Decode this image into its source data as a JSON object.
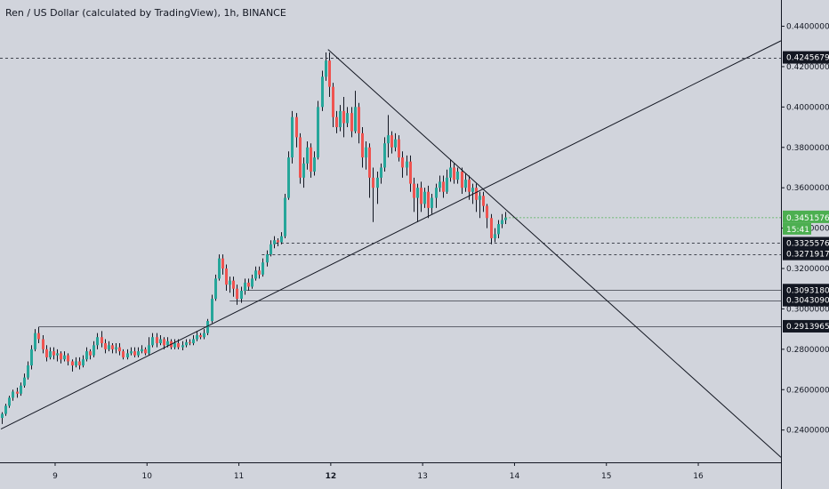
{
  "header": {
    "title": "Ren / US Dollar (calculated by TradingView), 1h, BINANCE"
  },
  "colors": {
    "background": "#d1d4dc",
    "up": "#26a69a",
    "down": "#ef5350",
    "up_label": "#4caf50",
    "line": "#131722",
    "label_bg": "#131722"
  },
  "chart_data": {
    "type": "candlestick",
    "symbol": "Ren / US Dollar",
    "interval": "1h",
    "exchange": "BINANCE",
    "x_ticks": [
      "9",
      "10",
      "11",
      "12",
      "13",
      "14",
      "15",
      "16"
    ],
    "y_ticks": [
      "0.24000000",
      "0.26000000",
      "0.28000000",
      "0.30000000",
      "0.32000000",
      "0.34000000",
      "0.36000000",
      "0.38000000",
      "0.40000000",
      "0.42000000",
      "0.44000000"
    ],
    "ylim": [
      0.224,
      0.453
    ],
    "xlim": [
      8.4,
      16.9
    ],
    "last_price": "0.34515761",
    "countdown": "15:41",
    "price_levels": [
      "0.42456799",
      "0.33255763",
      "0.32719173",
      "0.30931801",
      "0.30430900",
      "0.29139656"
    ],
    "trendlines": [
      {
        "x": [
          8.41,
          16.9
        ],
        "y": [
          0.2405,
          0.4328
        ]
      },
      {
        "x": [
          11.97,
          16.9
        ],
        "y": [
          0.4285,
          0.2265
        ]
      }
    ],
    "candles": [
      [
        8.42,
        0.246,
        0.248,
        0.243,
        0.2488
      ],
      [
        8.46,
        0.248,
        0.252,
        0.247,
        0.253
      ],
      [
        8.5,
        0.252,
        0.256,
        0.251,
        0.257
      ],
      [
        8.54,
        0.256,
        0.259,
        0.2545,
        0.26
      ],
      [
        8.58,
        0.259,
        0.258,
        0.256,
        0.261
      ],
      [
        8.62,
        0.258,
        0.262,
        0.257,
        0.2635
      ],
      [
        8.66,
        0.262,
        0.266,
        0.261,
        0.268
      ],
      [
        8.7,
        0.266,
        0.272,
        0.265,
        0.274
      ],
      [
        8.74,
        0.272,
        0.28,
        0.27,
        0.282
      ],
      [
        8.78,
        0.28,
        0.288,
        0.279,
        0.29
      ],
      [
        8.82,
        0.288,
        0.285,
        0.283,
        0.291
      ],
      [
        8.86,
        0.285,
        0.28,
        0.278,
        0.287
      ],
      [
        8.9,
        0.28,
        0.276,
        0.274,
        0.282
      ],
      [
        8.94,
        0.276,
        0.279,
        0.275,
        0.281
      ],
      [
        8.98,
        0.279,
        0.277,
        0.275,
        0.281
      ],
      [
        9.02,
        0.277,
        0.278,
        0.274,
        0.28
      ],
      [
        9.06,
        0.278,
        0.275,
        0.273,
        0.279
      ],
      [
        9.1,
        0.275,
        0.277,
        0.274,
        0.279
      ],
      [
        9.14,
        0.277,
        0.274,
        0.272,
        0.278
      ],
      [
        9.18,
        0.274,
        0.272,
        0.269,
        0.275
      ],
      [
        9.22,
        0.272,
        0.274,
        0.271,
        0.276
      ],
      [
        9.26,
        0.274,
        0.272,
        0.27,
        0.276
      ],
      [
        9.3,
        0.272,
        0.275,
        0.271,
        0.277
      ],
      [
        9.34,
        0.275,
        0.279,
        0.274,
        0.281
      ],
      [
        9.38,
        0.279,
        0.277,
        0.275,
        0.28
      ],
      [
        9.42,
        0.277,
        0.282,
        0.276,
        0.284
      ],
      [
        9.46,
        0.282,
        0.286,
        0.28,
        0.288
      ],
      [
        9.5,
        0.286,
        0.283,
        0.281,
        0.289
      ],
      [
        9.54,
        0.283,
        0.28,
        0.278,
        0.285
      ],
      [
        9.58,
        0.28,
        0.282,
        0.279,
        0.284
      ],
      [
        9.62,
        0.282,
        0.28,
        0.278,
        0.283
      ],
      [
        9.66,
        0.28,
        0.281,
        0.278,
        0.283
      ],
      [
        9.7,
        0.281,
        0.279,
        0.277,
        0.283
      ],
      [
        9.74,
        0.279,
        0.276,
        0.275,
        0.28
      ],
      [
        9.78,
        0.276,
        0.278,
        0.275,
        0.28
      ],
      [
        9.82,
        0.278,
        0.279,
        0.277,
        0.281
      ],
      [
        9.86,
        0.279,
        0.277,
        0.276,
        0.281
      ],
      [
        9.9,
        0.277,
        0.279,
        0.276,
        0.281
      ],
      [
        9.94,
        0.279,
        0.28,
        0.278,
        0.282
      ],
      [
        9.98,
        0.28,
        0.278,
        0.277,
        0.281
      ],
      [
        10.02,
        0.278,
        0.282,
        0.277,
        0.286
      ],
      [
        10.06,
        0.282,
        0.286,
        0.281,
        0.288
      ],
      [
        10.1,
        0.286,
        0.283,
        0.281,
        0.288
      ],
      [
        10.14,
        0.283,
        0.285,
        0.282,
        0.287
      ],
      [
        10.18,
        0.285,
        0.282,
        0.28,
        0.286
      ],
      [
        10.22,
        0.282,
        0.284,
        0.281,
        0.286
      ],
      [
        10.26,
        0.284,
        0.281,
        0.28,
        0.285
      ],
      [
        10.3,
        0.281,
        0.283,
        0.28,
        0.285
      ],
      [
        10.34,
        0.283,
        0.281,
        0.28,
        0.285
      ],
      [
        10.38,
        0.281,
        0.282,
        0.2795,
        0.284
      ],
      [
        10.42,
        0.282,
        0.2835,
        0.281,
        0.285
      ],
      [
        10.46,
        0.2835,
        0.283,
        0.282,
        0.285
      ],
      [
        10.5,
        0.283,
        0.285,
        0.282,
        0.287
      ],
      [
        10.54,
        0.285,
        0.287,
        0.284,
        0.289
      ],
      [
        10.58,
        0.287,
        0.286,
        0.285,
        0.288
      ],
      [
        10.62,
        0.286,
        0.288,
        0.285,
        0.29
      ],
      [
        10.66,
        0.288,
        0.294,
        0.287,
        0.295
      ],
      [
        10.7,
        0.294,
        0.305,
        0.293,
        0.307
      ],
      [
        10.74,
        0.305,
        0.315,
        0.304,
        0.317
      ],
      [
        10.78,
        0.315,
        0.325,
        0.314,
        0.327
      ],
      [
        10.82,
        0.325,
        0.32,
        0.317,
        0.327
      ],
      [
        10.86,
        0.32,
        0.312,
        0.309,
        0.322
      ],
      [
        10.9,
        0.312,
        0.314,
        0.308,
        0.316
      ],
      [
        10.94,
        0.314,
        0.31,
        0.306,
        0.316
      ],
      [
        10.98,
        0.31,
        0.305,
        0.302,
        0.312
      ],
      [
        11.02,
        0.305,
        0.309,
        0.303,
        0.311
      ],
      [
        11.06,
        0.309,
        0.313,
        0.307,
        0.315
      ],
      [
        11.1,
        0.313,
        0.311,
        0.309,
        0.315
      ],
      [
        11.14,
        0.311,
        0.315,
        0.31,
        0.317
      ],
      [
        11.18,
        0.315,
        0.319,
        0.314,
        0.321
      ],
      [
        11.22,
        0.319,
        0.317,
        0.315,
        0.321
      ],
      [
        11.26,
        0.317,
        0.323,
        0.316,
        0.325
      ],
      [
        11.3,
        0.323,
        0.327,
        0.321,
        0.329
      ],
      [
        11.34,
        0.327,
        0.332,
        0.326,
        0.334
      ],
      [
        11.38,
        0.332,
        0.334,
        0.33,
        0.336
      ],
      [
        11.42,
        0.334,
        0.333,
        0.331,
        0.335
      ],
      [
        11.46,
        0.333,
        0.336,
        0.332,
        0.338
      ],
      [
        11.5,
        0.336,
        0.355,
        0.335,
        0.357
      ],
      [
        11.54,
        0.355,
        0.375,
        0.354,
        0.378
      ],
      [
        11.58,
        0.375,
        0.395,
        0.372,
        0.398
      ],
      [
        11.62,
        0.395,
        0.385,
        0.38,
        0.397
      ],
      [
        11.66,
        0.385,
        0.365,
        0.362,
        0.387
      ],
      [
        11.7,
        0.365,
        0.372,
        0.36,
        0.375
      ],
      [
        11.74,
        0.372,
        0.38,
        0.369,
        0.383
      ],
      [
        11.78,
        0.38,
        0.368,
        0.365,
        0.382
      ],
      [
        11.82,
        0.368,
        0.375,
        0.366,
        0.378
      ],
      [
        11.86,
        0.375,
        0.4,
        0.374,
        0.403
      ],
      [
        11.9,
        0.4,
        0.415,
        0.398,
        0.418
      ],
      [
        11.94,
        0.415,
        0.423,
        0.413,
        0.427
      ],
      [
        11.98,
        0.423,
        0.41,
        0.405,
        0.427
      ],
      [
        12.02,
        0.41,
        0.395,
        0.39,
        0.412
      ],
      [
        12.06,
        0.395,
        0.39,
        0.387,
        0.398
      ],
      [
        12.1,
        0.39,
        0.398,
        0.388,
        0.401
      ],
      [
        12.14,
        0.398,
        0.392,
        0.385,
        0.405
      ],
      [
        12.18,
        0.392,
        0.397,
        0.39,
        0.4
      ],
      [
        12.22,
        0.397,
        0.388,
        0.385,
        0.4
      ],
      [
        12.26,
        0.388,
        0.4,
        0.387,
        0.408
      ],
      [
        12.3,
        0.4,
        0.387,
        0.382,
        0.402
      ],
      [
        12.34,
        0.387,
        0.375,
        0.37,
        0.39
      ],
      [
        12.38,
        0.375,
        0.38,
        0.369,
        0.383
      ],
      [
        12.42,
        0.38,
        0.365,
        0.355,
        0.382
      ],
      [
        12.46,
        0.365,
        0.36,
        0.343,
        0.37
      ],
      [
        12.5,
        0.36,
        0.365,
        0.352,
        0.368
      ],
      [
        12.54,
        0.365,
        0.37,
        0.362,
        0.372
      ],
      [
        12.58,
        0.37,
        0.382,
        0.368,
        0.385
      ],
      [
        12.62,
        0.382,
        0.386,
        0.375,
        0.396
      ],
      [
        12.66,
        0.386,
        0.38,
        0.377,
        0.388
      ],
      [
        12.7,
        0.38,
        0.384,
        0.378,
        0.387
      ],
      [
        12.74,
        0.384,
        0.375,
        0.373,
        0.386
      ],
      [
        12.78,
        0.375,
        0.37,
        0.365,
        0.378
      ],
      [
        12.82,
        0.37,
        0.373,
        0.366,
        0.376
      ],
      [
        12.86,
        0.373,
        0.362,
        0.358,
        0.376
      ],
      [
        12.9,
        0.362,
        0.355,
        0.348,
        0.365
      ],
      [
        12.94,
        0.355,
        0.36,
        0.343,
        0.362
      ],
      [
        12.98,
        0.36,
        0.352,
        0.348,
        0.363
      ],
      [
        13.02,
        0.352,
        0.358,
        0.35,
        0.36
      ],
      [
        13.06,
        0.358,
        0.35,
        0.345,
        0.361
      ],
      [
        13.1,
        0.35,
        0.355,
        0.347,
        0.357
      ],
      [
        13.14,
        0.355,
        0.36,
        0.35,
        0.362
      ],
      [
        13.18,
        0.36,
        0.363,
        0.358,
        0.366
      ],
      [
        13.22,
        0.363,
        0.358,
        0.355,
        0.366
      ],
      [
        13.26,
        0.358,
        0.365,
        0.357,
        0.369
      ],
      [
        13.3,
        0.365,
        0.37,
        0.363,
        0.374
      ],
      [
        13.34,
        0.37,
        0.364,
        0.362,
        0.372
      ],
      [
        13.38,
        0.364,
        0.368,
        0.362,
        0.37
      ],
      [
        13.42,
        0.368,
        0.36,
        0.357,
        0.37
      ],
      [
        13.46,
        0.36,
        0.364,
        0.358,
        0.367
      ],
      [
        13.5,
        0.364,
        0.358,
        0.354,
        0.366
      ],
      [
        13.54,
        0.358,
        0.36,
        0.352,
        0.362
      ],
      [
        13.58,
        0.36,
        0.354,
        0.348,
        0.362
      ],
      [
        13.62,
        0.354,
        0.356,
        0.345,
        0.358
      ],
      [
        13.66,
        0.356,
        0.351,
        0.348,
        0.358
      ],
      [
        13.7,
        0.351,
        0.345,
        0.34,
        0.352
      ],
      [
        13.74,
        0.345,
        0.335,
        0.332,
        0.347
      ],
      [
        13.78,
        0.335,
        0.337,
        0.333,
        0.34
      ],
      [
        13.82,
        0.337,
        0.342,
        0.335,
        0.344
      ],
      [
        13.86,
        0.342,
        0.344,
        0.34,
        0.347
      ],
      [
        13.9,
        0.344,
        0.3452,
        0.342,
        0.348
      ]
    ]
  }
}
